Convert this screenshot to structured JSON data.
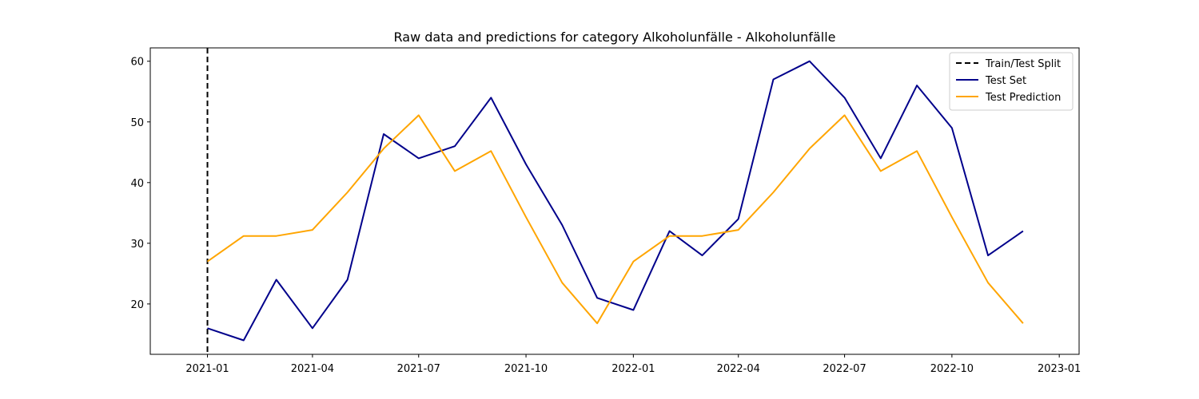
{
  "chart_data": {
    "type": "line",
    "title": "Raw data and predictions for category Alkoholunfälle - Alkoholunfälle",
    "xlabel": "",
    "ylabel": "",
    "x_ticks": [
      "2021-01",
      "2021-04",
      "2021-07",
      "2021-10",
      "2022-01",
      "2022-04",
      "2022-07",
      "2022-10",
      "2023-01"
    ],
    "y_ticks": [
      20,
      30,
      40,
      50,
      60
    ],
    "xlim": [
      "2020-11-13",
      "2023-01-18"
    ],
    "ylim": [
      11.7,
      62.2
    ],
    "grid": false,
    "legend_position": "top-right",
    "split_date": "2021-01-01",
    "x": [
      "2021-01-01",
      "2021-02-01",
      "2021-03-01",
      "2021-04-01",
      "2021-05-01",
      "2021-06-01",
      "2021-07-01",
      "2021-08-01",
      "2021-09-01",
      "2021-10-01",
      "2021-11-01",
      "2021-12-01",
      "2022-01-01",
      "2022-02-01",
      "2022-03-01",
      "2022-04-01",
      "2022-05-01",
      "2022-06-01",
      "2022-07-01",
      "2022-08-01",
      "2022-09-01",
      "2022-10-01",
      "2022-11-01",
      "2022-12-01"
    ],
    "series": [
      {
        "name": "Train/Test Split",
        "kind": "vline",
        "color": "#000000",
        "dash": true
      },
      {
        "name": "Test Set",
        "color": "#00008b",
        "values": [
          16,
          14,
          24,
          16,
          24,
          48,
          44,
          46,
          54,
          43,
          33,
          21,
          19,
          32,
          28,
          34,
          57,
          60,
          54,
          44,
          56,
          49,
          28,
          32
        ]
      },
      {
        "name": "Test Prediction",
        "color": "#ffa500",
        "values": [
          27,
          31.2,
          31.2,
          32.2,
          38.4,
          45.6,
          51.1,
          41.9,
          45.2,
          34.3,
          23.5,
          16.8,
          27,
          31.2,
          31.2,
          32.2,
          38.4,
          45.6,
          51.1,
          41.9,
          45.2,
          34.3,
          23.5,
          16.8
        ]
      }
    ]
  }
}
